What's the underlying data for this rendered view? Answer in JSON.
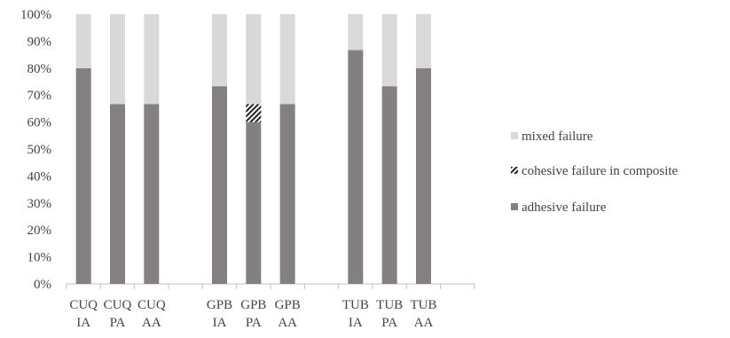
{
  "chart_data": {
    "type": "bar",
    "stacked": true,
    "percent": true,
    "ylim": [
      0,
      100
    ],
    "y_ticks": [
      "0%",
      "10%",
      "20%",
      "30%",
      "40%",
      "50%",
      "60%",
      "70%",
      "80%",
      "90%",
      "100%"
    ],
    "groups": [
      {
        "categories": [
          [
            "CUQ",
            "IA"
          ],
          [
            "CUQ",
            "PA"
          ],
          [
            "CUQ",
            "AA"
          ]
        ]
      },
      {
        "categories": [
          [
            "GPB",
            "IA"
          ],
          [
            "GPB",
            "PA"
          ],
          [
            "GPB",
            "AA"
          ]
        ]
      },
      {
        "categories": [
          [
            "TUB",
            "IA"
          ],
          [
            "TUB",
            "PA"
          ],
          [
            "TUB",
            "AA"
          ]
        ]
      }
    ],
    "series": [
      {
        "name": "adhesive failure",
        "color": "#858080",
        "pattern": "solid",
        "values": [
          80,
          66.7,
          66.7,
          73.3,
          60,
          66.7,
          86.7,
          73.3,
          80
        ]
      },
      {
        "name": "cohesive failure in composite",
        "color": "#222222",
        "pattern": "diagonal-hatch",
        "values": [
          0,
          0,
          0,
          0,
          6.7,
          0,
          0,
          0,
          0
        ]
      },
      {
        "name": "mixed failure",
        "color": "#d9d9d9",
        "pattern": "solid",
        "values": [
          20,
          33.3,
          33.3,
          26.7,
          33.3,
          33.3,
          13.3,
          26.7,
          20
        ]
      }
    ],
    "legend": {
      "position": "right",
      "order": [
        "mixed failure",
        "cohesive failure in composite",
        "adhesive failure"
      ]
    },
    "grid": false
  }
}
